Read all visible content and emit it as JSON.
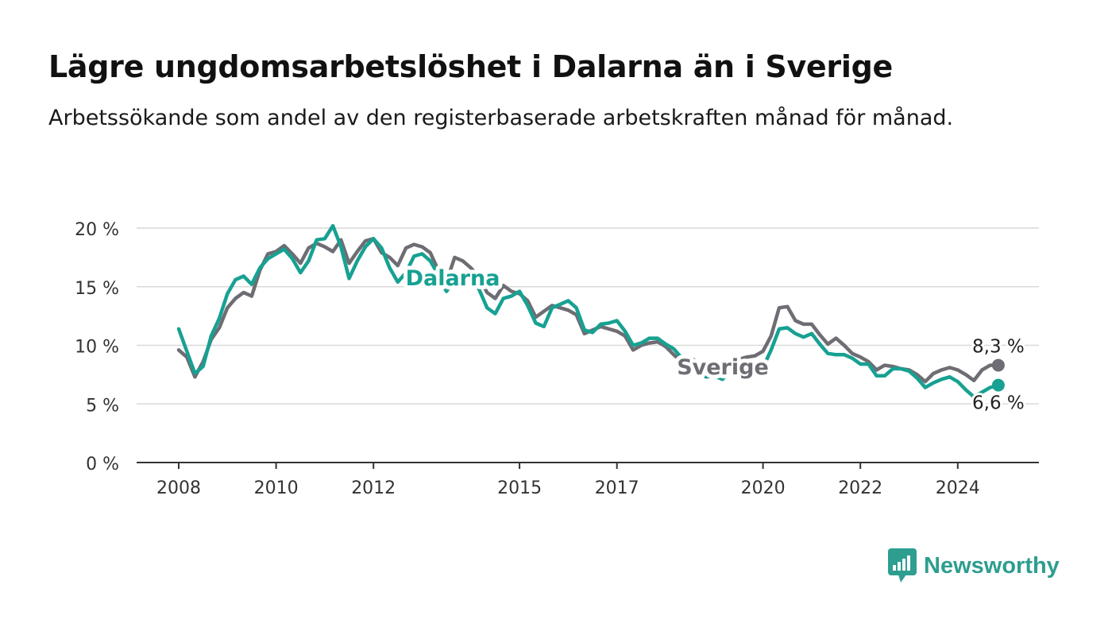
{
  "title": "Lägre ungdomsarbetslöshet i Dalarna än i Sverige",
  "subtitle": "Arbetssökande som andel av den registerbaserade arbetskraften månad för månad.",
  "brand": {
    "name": "Newsworthy",
    "color": "#2d9e8f"
  },
  "chart_data": {
    "type": "line",
    "y_ticks": [
      "0 %",
      "5 %",
      "10 %",
      "15 %",
      "20 %"
    ],
    "y_tick_values": [
      0,
      5,
      10,
      15,
      20
    ],
    "ylim": [
      0,
      20
    ],
    "x_ticks": [
      "2008",
      "2010",
      "2012",
      "2015",
      "2017",
      "2020",
      "2022",
      "2024"
    ],
    "x_tick_values": [
      "2008-01",
      "2010-01",
      "2012-01",
      "2015-01",
      "2017-01",
      "2020-01",
      "2022-01",
      "2024-01"
    ],
    "grid": true,
    "series": [
      {
        "name": "Sverige",
        "color": "#6e6d73",
        "end_label": "8,3 %",
        "points": [
          [
            "2008-01",
            9.6
          ],
          [
            "2008-03",
            9.0
          ],
          [
            "2008-05",
            7.3
          ],
          [
            "2008-07",
            8.6
          ],
          [
            "2008-09",
            10.5
          ],
          [
            "2008-11",
            11.5
          ],
          [
            "2009-01",
            13.2
          ],
          [
            "2009-03",
            14.0
          ],
          [
            "2009-05",
            14.5
          ],
          [
            "2009-07",
            14.2
          ],
          [
            "2009-09",
            16.4
          ],
          [
            "2009-11",
            17.8
          ],
          [
            "2010-01",
            18.0
          ],
          [
            "2010-03",
            18.5
          ],
          [
            "2010-05",
            17.8
          ],
          [
            "2010-07",
            17.0
          ],
          [
            "2010-09",
            18.3
          ],
          [
            "2010-11",
            18.7
          ],
          [
            "2011-01",
            18.4
          ],
          [
            "2011-03",
            18.0
          ],
          [
            "2011-05",
            19.0
          ],
          [
            "2011-07",
            17.0
          ],
          [
            "2011-09",
            18.0
          ],
          [
            "2011-11",
            18.9
          ],
          [
            "2012-01",
            19.1
          ],
          [
            "2012-03",
            17.9
          ],
          [
            "2012-05",
            17.5
          ],
          [
            "2012-07",
            16.8
          ],
          [
            "2012-09",
            18.3
          ],
          [
            "2012-11",
            18.6
          ],
          [
            "2013-01",
            18.4
          ],
          [
            "2013-03",
            17.9
          ],
          [
            "2013-05",
            16.4
          ],
          [
            "2013-07",
            15.4
          ],
          [
            "2013-09",
            17.5
          ],
          [
            "2013-11",
            17.2
          ],
          [
            "2014-01",
            16.6
          ],
          [
            "2014-03",
            15.8
          ],
          [
            "2014-05",
            14.5
          ],
          [
            "2014-07",
            14.0
          ],
          [
            "2014-09",
            15.1
          ],
          [
            "2014-11",
            14.6
          ],
          [
            "2015-01",
            14.4
          ],
          [
            "2015-03",
            13.8
          ],
          [
            "2015-05",
            12.4
          ],
          [
            "2015-07",
            12.9
          ],
          [
            "2015-09",
            13.4
          ],
          [
            "2015-11",
            13.2
          ],
          [
            "2016-01",
            13.0
          ],
          [
            "2016-03",
            12.6
          ],
          [
            "2016-05",
            11.0
          ],
          [
            "2016-07",
            11.3
          ],
          [
            "2016-09",
            11.6
          ],
          [
            "2016-11",
            11.4
          ],
          [
            "2017-01",
            11.2
          ],
          [
            "2017-03",
            10.8
          ],
          [
            "2017-05",
            9.6
          ],
          [
            "2017-07",
            10.0
          ],
          [
            "2017-09",
            10.2
          ],
          [
            "2017-11",
            10.3
          ],
          [
            "2018-01",
            9.9
          ],
          [
            "2018-03",
            9.2
          ],
          [
            "2018-05",
            8.6
          ],
          [
            "2018-07",
            8.9
          ],
          [
            "2018-09",
            8.6
          ],
          [
            "2018-11",
            8.2
          ],
          [
            "2019-01",
            8.2
          ],
          [
            "2019-03",
            8.5
          ],
          [
            "2019-05",
            8.3
          ],
          [
            "2019-07",
            8.8
          ],
          [
            "2019-09",
            9.0
          ],
          [
            "2019-11",
            9.1
          ],
          [
            "2020-01",
            9.5
          ],
          [
            "2020-03",
            10.8
          ],
          [
            "2020-05",
            13.2
          ],
          [
            "2020-07",
            13.3
          ],
          [
            "2020-09",
            12.1
          ],
          [
            "2020-11",
            11.8
          ],
          [
            "2021-01",
            11.8
          ],
          [
            "2021-03",
            10.9
          ],
          [
            "2021-05",
            10.1
          ],
          [
            "2021-07",
            10.6
          ],
          [
            "2021-09",
            10.0
          ],
          [
            "2021-11",
            9.3
          ],
          [
            "2022-01",
            9.0
          ],
          [
            "2022-03",
            8.6
          ],
          [
            "2022-05",
            7.9
          ],
          [
            "2022-07",
            8.3
          ],
          [
            "2022-09",
            8.2
          ],
          [
            "2022-11",
            8.0
          ],
          [
            "2023-01",
            7.9
          ],
          [
            "2023-03",
            7.5
          ],
          [
            "2023-05",
            6.9
          ],
          [
            "2023-07",
            7.6
          ],
          [
            "2023-09",
            7.9
          ],
          [
            "2023-11",
            8.1
          ],
          [
            "2024-01",
            7.9
          ],
          [
            "2024-03",
            7.5
          ],
          [
            "2024-05",
            7.0
          ],
          [
            "2024-07",
            7.9
          ],
          [
            "2024-09",
            8.3
          ],
          [
            "2024-11",
            8.3
          ]
        ]
      },
      {
        "name": "Dalarna",
        "color": "#17a192",
        "end_label": "6,6 %",
        "points": [
          [
            "2008-01",
            11.4
          ],
          [
            "2008-03",
            9.5
          ],
          [
            "2008-05",
            7.6
          ],
          [
            "2008-07",
            8.2
          ],
          [
            "2008-09",
            10.8
          ],
          [
            "2008-11",
            12.3
          ],
          [
            "2009-01",
            14.4
          ],
          [
            "2009-03",
            15.6
          ],
          [
            "2009-05",
            15.9
          ],
          [
            "2009-07",
            15.2
          ],
          [
            "2009-09",
            16.6
          ],
          [
            "2009-11",
            17.4
          ],
          [
            "2010-01",
            17.8
          ],
          [
            "2010-03",
            18.2
          ],
          [
            "2010-05",
            17.4
          ],
          [
            "2010-07",
            16.2
          ],
          [
            "2010-09",
            17.2
          ],
          [
            "2010-11",
            19.0
          ],
          [
            "2011-01",
            19.1
          ],
          [
            "2011-03",
            20.2
          ],
          [
            "2011-05",
            18.4
          ],
          [
            "2011-07",
            15.7
          ],
          [
            "2011-09",
            17.2
          ],
          [
            "2011-11",
            18.4
          ],
          [
            "2012-01",
            19.1
          ],
          [
            "2012-03",
            18.3
          ],
          [
            "2012-05",
            16.6
          ],
          [
            "2012-07",
            15.4
          ],
          [
            "2012-09",
            16.2
          ],
          [
            "2012-11",
            17.6
          ],
          [
            "2013-01",
            17.8
          ],
          [
            "2013-03",
            17.2
          ],
          [
            "2013-05",
            16.0
          ],
          [
            "2013-07",
            14.6
          ],
          [
            "2013-09",
            15.5
          ],
          [
            "2013-11",
            15.9
          ],
          [
            "2014-01",
            15.4
          ],
          [
            "2014-03",
            14.8
          ],
          [
            "2014-05",
            13.2
          ],
          [
            "2014-07",
            12.7
          ],
          [
            "2014-09",
            14.0
          ],
          [
            "2014-11",
            14.2
          ],
          [
            "2015-01",
            14.6
          ],
          [
            "2015-03",
            13.4
          ],
          [
            "2015-05",
            11.9
          ],
          [
            "2015-07",
            11.6
          ],
          [
            "2015-09",
            13.2
          ],
          [
            "2015-11",
            13.5
          ],
          [
            "2016-01",
            13.8
          ],
          [
            "2016-03",
            13.2
          ],
          [
            "2016-05",
            11.3
          ],
          [
            "2016-07",
            11.1
          ],
          [
            "2016-09",
            11.8
          ],
          [
            "2016-11",
            11.9
          ],
          [
            "2017-01",
            12.1
          ],
          [
            "2017-03",
            11.2
          ],
          [
            "2017-05",
            10.0
          ],
          [
            "2017-07",
            10.2
          ],
          [
            "2017-09",
            10.6
          ],
          [
            "2017-11",
            10.6
          ],
          [
            "2018-01",
            10.1
          ],
          [
            "2018-03",
            9.7
          ],
          [
            "2018-05",
            8.9
          ],
          [
            "2018-07",
            8.1
          ],
          [
            "2018-09",
            7.6
          ],
          [
            "2018-11",
            7.3
          ],
          [
            "2019-01",
            7.4
          ],
          [
            "2019-03",
            7.1
          ],
          [
            "2019-05",
            7.8
          ],
          [
            "2019-07",
            8.1
          ],
          [
            "2019-09",
            8.3
          ],
          [
            "2019-11",
            8.4
          ],
          [
            "2020-01",
            8.1
          ],
          [
            "2020-03",
            9.6
          ],
          [
            "2020-05",
            11.4
          ],
          [
            "2020-07",
            11.5
          ],
          [
            "2020-09",
            11.0
          ],
          [
            "2020-11",
            10.7
          ],
          [
            "2021-01",
            11.0
          ],
          [
            "2021-03",
            10.1
          ],
          [
            "2021-05",
            9.3
          ],
          [
            "2021-07",
            9.2
          ],
          [
            "2021-09",
            9.2
          ],
          [
            "2021-11",
            8.9
          ],
          [
            "2022-01",
            8.4
          ],
          [
            "2022-03",
            8.4
          ],
          [
            "2022-05",
            7.4
          ],
          [
            "2022-07",
            7.4
          ],
          [
            "2022-09",
            8.0
          ],
          [
            "2022-11",
            8.0
          ],
          [
            "2023-01",
            7.8
          ],
          [
            "2023-03",
            7.2
          ],
          [
            "2023-05",
            6.4
          ],
          [
            "2023-07",
            6.8
          ],
          [
            "2023-09",
            7.1
          ],
          [
            "2023-11",
            7.3
          ],
          [
            "2024-01",
            6.9
          ],
          [
            "2024-03",
            6.2
          ],
          [
            "2024-05",
            5.6
          ],
          [
            "2024-07",
            6.0
          ],
          [
            "2024-09",
            6.4
          ],
          [
            "2024-11",
            6.6
          ]
        ]
      }
    ],
    "annotations": [
      "Dalarna",
      "Sverige"
    ]
  }
}
